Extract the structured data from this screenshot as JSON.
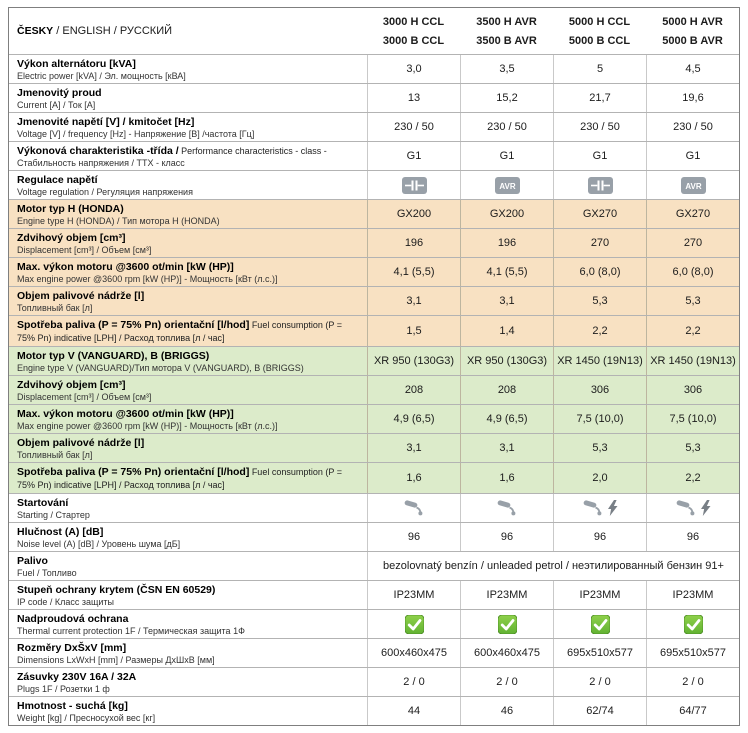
{
  "header": {
    "language_title_bold": "ČESKY",
    "language_title_rest": " / ENGLISH / РУССКИЙ",
    "columns": [
      {
        "line1": "3000 H CCL",
        "line2": "3000 B CCL"
      },
      {
        "line1": "3500 H AVR",
        "line2": "3500 B AVR"
      },
      {
        "line1": "5000 H CCL",
        "line2": "5000 B CCL"
      },
      {
        "line1": "5000 H AVR",
        "line2": "5000 B AVR"
      }
    ]
  },
  "colors": {
    "section_orange": "#f8e1c2",
    "section_green": "#dcebca",
    "icon_grey": "#98a0a8",
    "check_green": "#61b232"
  },
  "rows": [
    {
      "section": "white",
      "label": "Výkon alternátoru [kVA]",
      "sub": "Electric power [kVA] / Эл. мощность [кВА]",
      "type": "text",
      "values": [
        "3,0",
        "3,5",
        "5",
        "4,5"
      ]
    },
    {
      "section": "white",
      "label": "Jmenovitý proud",
      "sub": "Current [A] / Ток [A]",
      "type": "text",
      "values": [
        "13",
        "15,2",
        "21,7",
        "19,6"
      ]
    },
    {
      "section": "white",
      "label": "Jmenovité napětí [V] / kmitočet [Hz]",
      "sub": "Voltage [V] / frequency [Hz] - Напряжение [В] /частота [Гц]",
      "type": "text",
      "values": [
        "230 / 50",
        "230 / 50",
        "230 / 50",
        "230 / 50"
      ]
    },
    {
      "section": "white",
      "label": "Výkonová charakteristika -třída /",
      "label_rest": "Performance characteristics - class -",
      "sub": "Стабильность напряжения / ТТХ - класс",
      "type": "text",
      "values": [
        "G1",
        "G1",
        "G1",
        "G1"
      ]
    },
    {
      "section": "white",
      "label": "Regulace napětí",
      "sub": "Voltage regulation / Регуляция напряжения",
      "type": "icons",
      "icons": [
        [
          "capacitor"
        ],
        [
          "avr"
        ],
        [
          "capacitor"
        ],
        [
          "avr"
        ]
      ]
    },
    {
      "section": "orange",
      "label": "Motor typ H (HONDA)",
      "sub": "Engine type H (HONDA) / Тип мотора H (HONDA)",
      "type": "text",
      "values": [
        "GX200",
        "GX200",
        "GX270",
        "GX270"
      ]
    },
    {
      "section": "orange",
      "label": "Zdvihový objem [cm³]",
      "sub": "Displacement [cm³] / Объем [см³]",
      "type": "text",
      "values": [
        "196",
        "196",
        "270",
        "270"
      ]
    },
    {
      "section": "orange",
      "label": "Max. výkon motoru @3600 ot/min [kW (HP)]",
      "sub": "Max engine power @3600 rpm [kW (HP)] - Мощность [кВт (л.с.)]",
      "type": "text",
      "values": [
        "4,1  (5,5)",
        "4,1  (5,5)",
        "6,0 (8,0)",
        "6,0 (8,0)"
      ]
    },
    {
      "section": "orange",
      "label": "Objem palivové nádrže [l]",
      "sub": "Топливный бак [л]",
      "type": "text",
      "values": [
        "3,1",
        "3,1",
        "5,3",
        "5,3"
      ]
    },
    {
      "section": "orange",
      "label": "Spotřeba paliva (P = 75%  Pn) orientační [l/hod]",
      "label_rest": "Fuel consumption (P = 75% Pn) indicative [LPH] / Расход топлива [л / час]",
      "sub": "",
      "type": "text",
      "values": [
        "1,5",
        "1,4",
        "2,2",
        "2,2"
      ]
    },
    {
      "section": "green",
      "label": "Motor typ V (VANGUARD), B (BRIGGS)",
      "sub": "Engine type V (VANGUARD)/Тип мотора V (VANGUARD), B (BRIGGS)",
      "type": "text",
      "values": [
        "XR 950 (130G3)",
        "XR 950 (130G3)",
        "XR 1450 (19N13)",
        "XR 1450 (19N13)"
      ]
    },
    {
      "section": "green",
      "label": "Zdvihový objem [cm³]",
      "sub": "Displacement [cm³] / Объем [см³]",
      "type": "text",
      "values": [
        "208",
        "208",
        "306",
        "306"
      ]
    },
    {
      "section": "green",
      "label": "Max. výkon motoru @3600 ot/min [kW (HP)]",
      "sub": "Max engine power @3600 rpm [kW (HP)] - Мощность [кВт (л.с.)]",
      "type": "text",
      "values": [
        "4,9 (6,5)",
        "4,9 (6,5)",
        "7,5 (10,0)",
        "7,5 (10,0)"
      ]
    },
    {
      "section": "green",
      "label": "Objem palivové nádrže [l]",
      "sub": "Топливный бак [л]",
      "type": "text",
      "values": [
        "3,1",
        "3,1",
        "5,3",
        "5,3"
      ]
    },
    {
      "section": "green",
      "label": "Spotřeba paliva (P = 75%  Pn) orientační [l/hod]",
      "label_rest": "Fuel consumption (P = 75% Pn) indicative [LPH] / Расход топлива [л / час]",
      "sub": "",
      "type": "text",
      "values": [
        "1,6",
        "1,6",
        "2,0",
        "2,2"
      ]
    },
    {
      "section": "white",
      "label": "Startování",
      "sub": "Starting / Стартер",
      "type": "icons",
      "icons": [
        [
          "pull"
        ],
        [
          "pull"
        ],
        [
          "pull",
          "bolt"
        ],
        [
          "pull",
          "bolt"
        ]
      ]
    },
    {
      "section": "white",
      "label": "Hlučnost (A) [dB]",
      "sub": "Noise level (A) [dB] / Уровень шума [дБ]",
      "type": "text",
      "values": [
        "96",
        "96",
        "96",
        "96"
      ]
    },
    {
      "section": "white",
      "label": "Palivo",
      "sub": "Fuel / Топливо",
      "type": "span",
      "span_value": "bezolovnatý benzín / unleaded petrol / неэтилированный бензин 91+"
    },
    {
      "section": "white",
      "label": "Stupeň ochrany krytem (ČSN EN 60529)",
      "sub": "IP code / Класс защиты",
      "type": "text",
      "values": [
        "IP23MM",
        "IP23MM",
        "IP23MM",
        "IP23MM"
      ]
    },
    {
      "section": "white",
      "label": "Nadproudová ochrana",
      "sub": "Thermal current protection 1F / Термическая защита 1Ф",
      "type": "icons",
      "icons": [
        [
          "check"
        ],
        [
          "check"
        ],
        [
          "check"
        ],
        [
          "check"
        ]
      ]
    },
    {
      "section": "white",
      "label": "Rozměry DxŠxV [mm]",
      "sub": "Dimensions LxWxH [mm] / Размеры ДхШхВ [мм]",
      "type": "text",
      "values": [
        "600x460x475",
        "600x460x475",
        "695x510x577",
        "695x510x577"
      ]
    },
    {
      "section": "white",
      "label": "Zásuvky 230V 16A / 32A",
      "sub": "Plugs 1F / Розетки 1 ф",
      "type": "text",
      "values": [
        "2 / 0",
        "2 / 0",
        "2 / 0",
        "2 / 0"
      ]
    },
    {
      "section": "white",
      "label": "Hmotnost - suchá [kg]",
      "sub": "Weight [kg] / Пресносухой вес [кг]",
      "type": "text",
      "values": [
        "44",
        "46",
        "62/74",
        "64/77"
      ]
    }
  ]
}
